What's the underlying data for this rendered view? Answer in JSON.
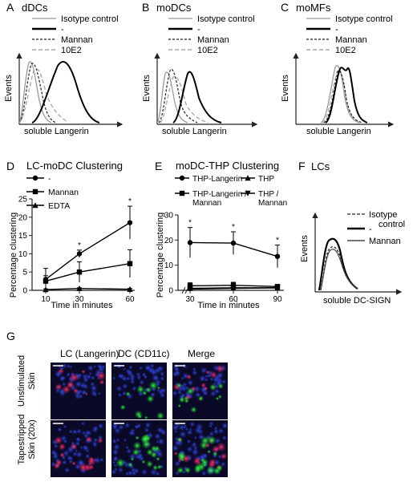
{
  "panels": {
    "A": {
      "letter": "A",
      "title": "dDCs"
    },
    "B": {
      "letter": "B",
      "title": "moDCs"
    },
    "C": {
      "letter": "C",
      "title": "moMFs"
    },
    "D": {
      "letter": "D",
      "title": "LC-moDC Clustering"
    },
    "E": {
      "letter": "E",
      "title": "moDC-THP Clustering"
    },
    "F": {
      "letter": "F",
      "title": "LCs"
    },
    "G": {
      "letter": "G"
    }
  },
  "histogram_legend": [
    "Isotype control",
    "-",
    "Mannan",
    "10E2"
  ],
  "histogram_axis": {
    "y": "Events",
    "x": "soluble Langerin"
  },
  "panel_f": {
    "legend": [
      "Isotype",
      "control",
      "-",
      "Mannan"
    ],
    "ylabel": "Events",
    "xlabel": "soluble DC-SIGN"
  },
  "panel_g": {
    "columns": [
      "LC (Langerin)",
      "DC (CD11c)",
      "Merge"
    ],
    "rows": [
      "Unstimulated Skin",
      "Tapestripped Skin (20x)"
    ],
    "row_lines": [
      [
        "Unstimulated",
        "Skin"
      ],
      [
        "Tapestripped",
        "Skin (20x)"
      ]
    ]
  },
  "colors": {
    "langerin": "#d0205a",
    "cd11c": "#22c832",
    "nuclei": "#2a3cc8",
    "background": "#0a0a28"
  },
  "chart_data": [
    {
      "type": "line",
      "panel": "D",
      "title": "LC-moDC Clustering",
      "xlabel": "Time in minutes",
      "ylabel": "Percentage clustering",
      "x": [
        10,
        30,
        60
      ],
      "ylim": [
        0,
        25
      ],
      "yticks": [
        0,
        5,
        10,
        15,
        20,
        25
      ],
      "series": [
        {
          "name": "-",
          "marker": "circle",
          "values": [
            3,
            10,
            18.5
          ],
          "errors": [
            3,
            1,
            4.5
          ]
        },
        {
          "name": "Mannan",
          "marker": "square",
          "values": [
            2.5,
            5,
            7.3
          ],
          "errors": [
            1.5,
            2.8,
            3.8
          ]
        },
        {
          "name": "EDTA",
          "marker": "triangle",
          "values": [
            0.2,
            0.5,
            0.3
          ],
          "errors": [
            0.2,
            0.2,
            0.2
          ]
        }
      ],
      "annotations": [
        "*",
        "*"
      ]
    },
    {
      "type": "line",
      "panel": "E",
      "title": "moDC-THP Clustering",
      "xlabel": "Time in minutes",
      "ylabel": "Percentage clustering",
      "x": [
        30,
        60,
        90
      ],
      "ylim": [
        0,
        30
      ],
      "yticks": [
        0,
        10,
        20,
        30
      ],
      "series": [
        {
          "name": "THP-Langerin",
          "marker": "circle",
          "values": [
            19,
            18.8,
            13.5
          ],
          "errors": [
            6,
            4.5,
            4.5
          ]
        },
        {
          "name": "THP-Langerin / Mannan",
          "marker": "square",
          "values": [
            1.8,
            2,
            1.5
          ],
          "errors": [
            1.2,
            1.2,
            0.8
          ]
        },
        {
          "name": "THP",
          "marker": "triangle",
          "values": [
            0.8,
            1,
            1
          ],
          "errors": [
            0.5,
            0.5,
            0.5
          ]
        },
        {
          "name": "THP / Mannan",
          "marker": "triangle-down",
          "values": [
            0.5,
            0.8,
            1
          ],
          "errors": [
            0.4,
            0.4,
            0.4
          ]
        }
      ],
      "legend_lines": [
        [
          "THP-Langerin"
        ],
        [
          "THP-Langerin /",
          "Mannan"
        ],
        [
          "THP"
        ],
        [
          "THP /",
          "Mannan"
        ]
      ],
      "annotations": [
        "*",
        "*",
        "*"
      ]
    }
  ]
}
